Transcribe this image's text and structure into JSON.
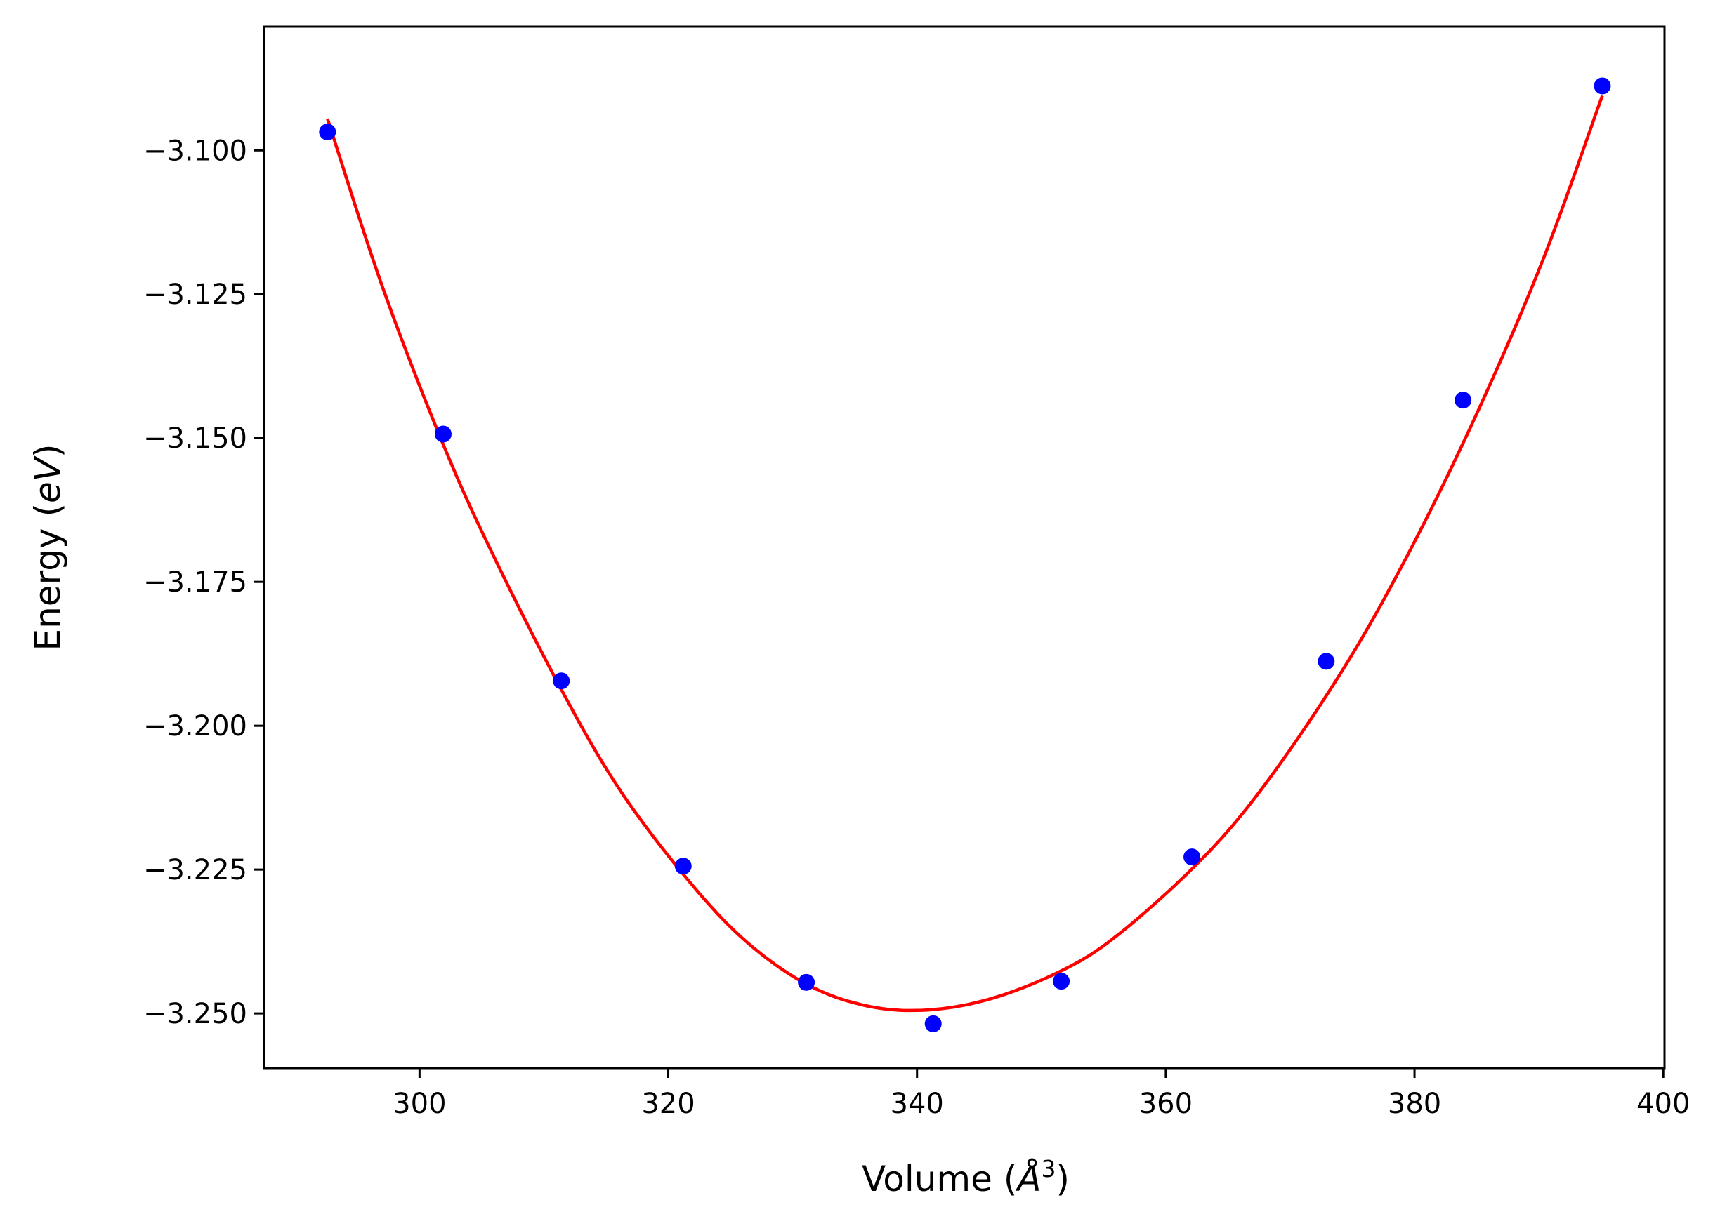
{
  "chart_data": {
    "type": "scatter",
    "title": "",
    "xlabel": {
      "prefix": "Volume (",
      "symbol": "Å",
      "sup": "3",
      "suffix": ")"
    },
    "ylabel": {
      "prefix": "Energy (",
      "unit": "eV",
      "suffix": ")"
    },
    "xlim": [
      287.5,
      400.1
    ],
    "ylim": [
      -3.2595,
      -3.0785
    ],
    "xticks": [
      300,
      320,
      340,
      360,
      380,
      400
    ],
    "xtick_labels": [
      "300",
      "320",
      "340",
      "360",
      "380",
      "400"
    ],
    "yticks": [
      -3.1,
      -3.125,
      -3.15,
      -3.175,
      -3.2,
      -3.225,
      -3.25
    ],
    "ytick_labels": [
      "−3.100",
      "−3.125",
      "−3.150",
      "−3.175",
      "−3.200",
      "−3.225",
      "−3.250"
    ],
    "grid": false,
    "series": [
      {
        "kind": "points",
        "color": "#0000ff",
        "x": [
          292.6,
          301.9,
          311.4,
          321.2,
          331.1,
          341.3,
          351.6,
          362.1,
          372.9,
          383.9,
          395.1
        ],
        "y": [
          -3.0968,
          -3.1493,
          -3.1922,
          -3.2244,
          -3.2446,
          -3.2518,
          -3.2444,
          -3.2228,
          -3.1888,
          -3.1434,
          -3.0888
        ]
      },
      {
        "kind": "fit-curve",
        "color": "#ff0000",
        "x": [
          292.6,
          297.0,
          301.9,
          306.0,
          311.4,
          316.0,
          321.2,
          326.0,
          331.1,
          336.0,
          340.8,
          346.0,
          351.6,
          356.0,
          362.1,
          367.0,
          372.9,
          378.0,
          383.9,
          390.0,
          395.1
        ],
        "y": [
          -3.0945,
          -3.1236,
          -3.1511,
          -3.1707,
          -3.1937,
          -3.2108,
          -3.2258,
          -3.237,
          -3.2449,
          -3.2487,
          -3.2494,
          -3.2474,
          -3.2426,
          -3.2366,
          -3.2249,
          -3.213,
          -3.1948,
          -3.1762,
          -3.1509,
          -3.1208,
          -3.0905
        ]
      }
    ]
  }
}
